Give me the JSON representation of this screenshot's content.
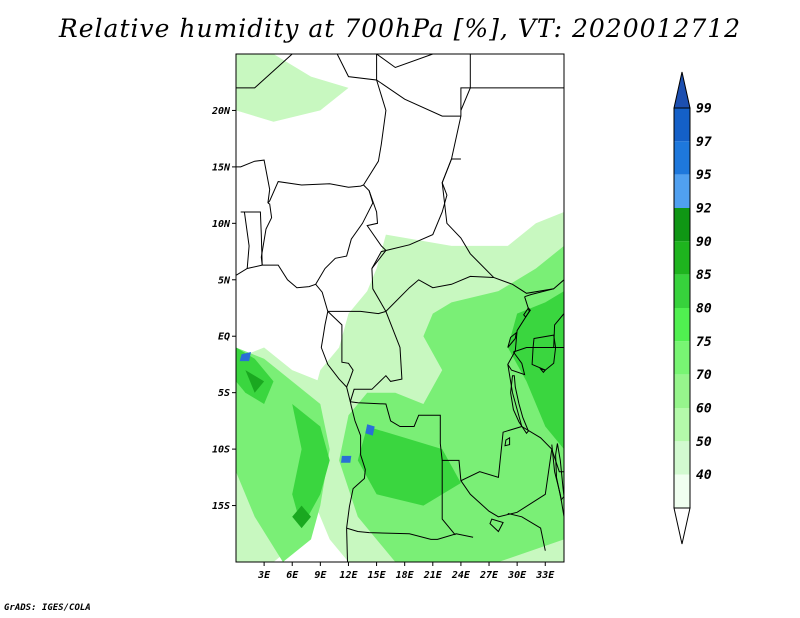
{
  "title": "Relative humidity at 700hPa [%], VT: 2020012712",
  "credit": "GrADS: IGES/COLA",
  "map": {
    "lon_range": [
      0,
      35
    ],
    "lat_range": [
      -20,
      25
    ],
    "lat_ticks": [
      {
        "value": 20,
        "label": "20N"
      },
      {
        "value": 15,
        "label": "15N"
      },
      {
        "value": 10,
        "label": "10N"
      },
      {
        "value": 5,
        "label": "5N"
      },
      {
        "value": 0,
        "label": "EQ"
      },
      {
        "value": -5,
        "label": "5S"
      },
      {
        "value": -10,
        "label": "10S"
      },
      {
        "value": -15,
        "label": "15S"
      }
    ],
    "lon_ticks": [
      {
        "value": 3,
        "label": "3E"
      },
      {
        "value": 6,
        "label": "6E"
      },
      {
        "value": 9,
        "label": "9E"
      },
      {
        "value": 12,
        "label": "12E"
      },
      {
        "value": 15,
        "label": "15E"
      },
      {
        "value": 18,
        "label": "18E"
      },
      {
        "value": 21,
        "label": "21E"
      },
      {
        "value": 24,
        "label": "24E"
      },
      {
        "value": 27,
        "label": "27E"
      },
      {
        "value": 30,
        "label": "30E"
      },
      {
        "value": 33,
        "label": "33E"
      }
    ]
  },
  "colorbar": {
    "levels": [
      "99",
      "97",
      "95",
      "92",
      "90",
      "85",
      "80",
      "75",
      "70",
      "60",
      "50",
      "40"
    ],
    "colors": [
      "#1460c8",
      "#1e78dc",
      "#50a0f0",
      "#0f9614",
      "#1eb41e",
      "#37d23c",
      "#50f050",
      "#78f573",
      "#96f58c",
      "#b4faaa",
      "#d2fad0",
      "#f0fff0"
    ],
    "top_color": "#1c4fb0",
    "bottom_color": "#ffffff"
  },
  "humidity_fields": [
    {
      "level": 60,
      "color": "#c8f8c0",
      "polygon": [
        [
          0,
          25
        ],
        [
          4,
          25
        ],
        [
          8,
          23
        ],
        [
          12,
          22
        ],
        [
          9,
          20
        ],
        [
          4,
          19
        ],
        [
          0,
          20
        ]
      ]
    },
    {
      "level": 60,
      "color": "#c8f8c0",
      "polygon": [
        [
          16,
          9
        ],
        [
          23,
          8
        ],
        [
          29,
          8
        ],
        [
          32,
          10
        ],
        [
          35,
          11
        ],
        [
          35,
          -20
        ],
        [
          12,
          -20
        ],
        [
          10,
          -18
        ],
        [
          8,
          -14
        ],
        [
          7,
          -10
        ],
        [
          8,
          -6
        ],
        [
          9,
          -3
        ],
        [
          11,
          -1
        ],
        [
          12,
          2
        ],
        [
          14,
          4
        ],
        [
          15,
          6
        ]
      ]
    },
    {
      "level": 60,
      "color": "#c8f8c0",
      "polygon": [
        [
          0,
          -2
        ],
        [
          3,
          -1
        ],
        [
          6,
          -3
        ],
        [
          9,
          -4
        ],
        [
          10,
          -8
        ],
        [
          9,
          -14
        ],
        [
          7,
          -18
        ],
        [
          4,
          -20
        ],
        [
          0,
          -20
        ]
      ]
    },
    {
      "level": 75,
      "color": "#7aef76",
      "polygon": [
        [
          23,
          3
        ],
        [
          28,
          4
        ],
        [
          32,
          6
        ],
        [
          35,
          8
        ],
        [
          35,
          -18
        ],
        [
          28,
          -20
        ],
        [
          17,
          -20
        ],
        [
          13,
          -16
        ],
        [
          11,
          -11
        ],
        [
          12,
          -7
        ],
        [
          14,
          -5
        ],
        [
          17,
          -5
        ],
        [
          20,
          -6
        ],
        [
          22,
          -3
        ],
        [
          20,
          0
        ],
        [
          21,
          2
        ]
      ]
    },
    {
      "level": 75,
      "color": "#7aef76",
      "polygon": [
        [
          0,
          -1
        ],
        [
          3,
          -2
        ],
        [
          6,
          -4
        ],
        [
          9,
          -6
        ],
        [
          10,
          -10
        ],
        [
          9,
          -15
        ],
        [
          8,
          -18
        ],
        [
          5,
          -20
        ],
        [
          2,
          -16
        ],
        [
          0,
          -12
        ]
      ]
    },
    {
      "level": 85,
      "color": "#3ad63f",
      "polygon": [
        [
          0,
          -1
        ],
        [
          2,
          -2
        ],
        [
          4,
          -4
        ],
        [
          3,
          -6
        ],
        [
          1,
          -5
        ],
        [
          0,
          -4
        ]
      ]
    },
    {
      "level": 85,
      "color": "#3ad63f",
      "polygon": [
        [
          6,
          -6
        ],
        [
          9,
          -8
        ],
        [
          10,
          -11
        ],
        [
          9,
          -14
        ],
        [
          7,
          -17
        ],
        [
          6,
          -14
        ],
        [
          7,
          -10
        ]
      ]
    },
    {
      "level": 85,
      "color": "#3ad63f",
      "polygon": [
        [
          30,
          2
        ],
        [
          33,
          3
        ],
        [
          35,
          4
        ],
        [
          35,
          -10
        ],
        [
          33,
          -8
        ],
        [
          31,
          -4
        ],
        [
          29,
          -1
        ]
      ]
    },
    {
      "level": 85,
      "color": "#3ad63f",
      "polygon": [
        [
          14,
          -8
        ],
        [
          18,
          -9
        ],
        [
          22,
          -10
        ],
        [
          24,
          -13
        ],
        [
          20,
          -15
        ],
        [
          15,
          -14
        ],
        [
          13,
          -11
        ]
      ]
    },
    {
      "level": 92,
      "color": "#1aa820",
      "polygon": [
        [
          1,
          -3
        ],
        [
          3,
          -4
        ],
        [
          2,
          -5
        ]
      ]
    },
    {
      "level": 92,
      "color": "#1aa820",
      "polygon": [
        [
          7,
          -15
        ],
        [
          8,
          -16
        ],
        [
          7,
          -17
        ],
        [
          6,
          -16
        ]
      ]
    },
    {
      "level": 99,
      "color": "#2a6fd6",
      "polygon": [
        [
          0.6,
          -1.6
        ],
        [
          1.6,
          -1.4
        ],
        [
          1.4,
          -2.2
        ],
        [
          0.4,
          -2.2
        ]
      ]
    },
    {
      "level": 99,
      "color": "#2a6fd6",
      "polygon": [
        [
          14,
          -7.8
        ],
        [
          14.8,
          -8.0
        ],
        [
          14.6,
          -8.8
        ],
        [
          13.8,
          -8.6
        ]
      ]
    },
    {
      "level": 99,
      "color": "#2a6fd6",
      "polygon": [
        [
          11.3,
          -10.6
        ],
        [
          12.3,
          -10.6
        ],
        [
          12.2,
          -11.2
        ],
        [
          11.2,
          -11.2
        ]
      ]
    }
  ],
  "country_borders": [
    [
      [
        0,
        22
      ],
      [
        2,
        22
      ],
      [
        6,
        25
      ]
    ],
    [
      [
        10.8,
        25
      ],
      [
        12,
        23
      ],
      [
        15,
        22.7
      ],
      [
        15,
        25
      ]
    ],
    [
      [
        15,
        25
      ],
      [
        17,
        23.8
      ],
      [
        21,
        25
      ]
    ],
    [
      [
        15,
        22.7
      ],
      [
        16,
        20
      ],
      [
        15.5,
        17
      ],
      [
        15.2,
        15.5
      ],
      [
        13.6,
        13.4
      ],
      [
        13.3,
        13.3
      ],
      [
        12,
        13.2
      ],
      [
        10,
        13.5
      ],
      [
        7,
        13.4
      ],
      [
        4.5,
        13.7
      ],
      [
        3.6,
        12
      ],
      [
        3.4,
        11.8
      ]
    ],
    [
      [
        0,
        15
      ],
      [
        0.5,
        15
      ],
      [
        2,
        15.5
      ],
      [
        3,
        15.6
      ],
      [
        3.6,
        13
      ],
      [
        3.4,
        11.8
      ]
    ],
    [
      [
        0.5,
        11
      ],
      [
        2.6,
        11
      ],
      [
        2.7,
        9
      ],
      [
        2.8,
        6.3
      ]
    ],
    [
      [
        1.2,
        6
      ],
      [
        1.4,
        8
      ],
      [
        0.9,
        11
      ]
    ],
    [
      [
        3.4,
        11.8
      ],
      [
        3.6,
        11.7
      ],
      [
        3.8,
        10.5
      ],
      [
        3.2,
        9.5
      ],
      [
        2.7,
        7
      ],
      [
        2.8,
        6.3
      ]
    ],
    [
      [
        8.5,
        4.6
      ],
      [
        9.5,
        6
      ],
      [
        10.6,
        6.9
      ],
      [
        11.8,
        7.1
      ],
      [
        12.3,
        8.6
      ],
      [
        13.5,
        10
      ],
      [
        14.6,
        11.8
      ],
      [
        14.2,
        12.9
      ],
      [
        13.6,
        13.4
      ]
    ],
    [
      [
        14.2,
        12.9
      ],
      [
        15,
        11
      ],
      [
        15.1,
        10
      ],
      [
        14,
        9.8
      ],
      [
        15.5,
        8
      ],
      [
        16,
        7.6
      ],
      [
        14.5,
        6
      ],
      [
        14.6,
        4.2
      ],
      [
        16,
        2.2
      ],
      [
        15.2,
        2
      ],
      [
        13.3,
        2.2
      ],
      [
        11.3,
        2.2
      ],
      [
        9.8,
        2.2
      ]
    ],
    [
      [
        9.8,
        2.2
      ],
      [
        11.3,
        1
      ],
      [
        11.3,
        -2.3
      ],
      [
        12,
        -2.4
      ],
      [
        12.5,
        -3
      ],
      [
        12.1,
        -3.9
      ],
      [
        11.8,
        -4.5
      ]
    ],
    [
      [
        14.5,
        6
      ],
      [
        15.5,
        7.5
      ],
      [
        18.5,
        8.1
      ],
      [
        21,
        9
      ],
      [
        22,
        11
      ],
      [
        22.5,
        12.5
      ],
      [
        22,
        13.6
      ],
      [
        23,
        15.7
      ],
      [
        24,
        19.5
      ],
      [
        24,
        20
      ]
    ],
    [
      [
        24,
        20
      ],
      [
        24,
        22
      ],
      [
        25,
        22
      ],
      [
        25,
        25
      ]
    ],
    [
      [
        15,
        22.7
      ],
      [
        18,
        21
      ],
      [
        22,
        19.5
      ],
      [
        24,
        19.5
      ]
    ],
    [
      [
        24,
        20
      ],
      [
        25,
        22
      ],
      [
        36.8,
        22
      ]
    ],
    [
      [
        22,
        13.6
      ],
      [
        22.5,
        10
      ],
      [
        24,
        8.7
      ],
      [
        25,
        7.3
      ],
      [
        27.5,
        5.2
      ],
      [
        29.5,
        4.6
      ],
      [
        31,
        3.8
      ],
      [
        33.9,
        4.2
      ],
      [
        35,
        5
      ]
    ],
    [
      [
        16,
        2.2
      ],
      [
        18.5,
        4.3
      ],
      [
        19.5,
        5
      ],
      [
        21,
        4.3
      ],
      [
        23,
        4.6
      ],
      [
        25,
        5.3
      ],
      [
        27.5,
        5.2
      ]
    ],
    [
      [
        16,
        2.2
      ],
      [
        17.5,
        -1
      ],
      [
        17.7,
        -3.8
      ],
      [
        16.5,
        -4
      ],
      [
        16,
        -3.5
      ],
      [
        14.5,
        -4.7
      ],
      [
        13.5,
        -4.7
      ],
      [
        12.6,
        -4.7
      ],
      [
        12.2,
        -5.8
      ]
    ],
    [
      [
        12.2,
        -5.8
      ],
      [
        13,
        -5.9
      ],
      [
        16,
        -6
      ],
      [
        16.5,
        -7.5
      ],
      [
        17.5,
        -8
      ],
      [
        19,
        -8
      ],
      [
        19.5,
        -7
      ],
      [
        21.8,
        -7
      ],
      [
        21.8,
        -9.5
      ],
      [
        22,
        -11
      ],
      [
        23.8,
        -11
      ],
      [
        24,
        -12.8
      ],
      [
        26,
        -12
      ],
      [
        28,
        -12.5
      ],
      [
        28.5,
        -8.5
      ],
      [
        30.5,
        -8
      ],
      [
        29.5,
        -5
      ],
      [
        29,
        -2.5
      ],
      [
        29.8,
        -1.3
      ],
      [
        30,
        0.5
      ],
      [
        31.3,
        2.2
      ],
      [
        30.8,
        3.5
      ]
    ],
    [
      [
        11.8,
        -17
      ],
      [
        13,
        -17.3
      ],
      [
        14.2,
        -17.4
      ],
      [
        18.5,
        -17.5
      ],
      [
        20.8,
        -18
      ],
      [
        21.5,
        -18
      ],
      [
        23.5,
        -17.5
      ],
      [
        25.3,
        -17.8
      ]
    ],
    [
      [
        22,
        -11
      ],
      [
        22,
        -13
      ],
      [
        22,
        -16.2
      ],
      [
        23.4,
        -17.6
      ]
    ],
    [
      [
        24,
        -12.8
      ],
      [
        25,
        -14
      ],
      [
        27,
        -15.5
      ],
      [
        28,
        -16
      ],
      [
        30,
        -15.6
      ],
      [
        33,
        -14
      ],
      [
        33.7,
        -10
      ]
    ],
    [
      [
        30.5,
        -8
      ],
      [
        32.5,
        -9
      ],
      [
        33.7,
        -10
      ],
      [
        34.5,
        -12
      ],
      [
        35,
        -12
      ]
    ],
    [
      [
        33.7,
        -9.6
      ],
      [
        34,
        -12
      ],
      [
        34.6,
        -14
      ],
      [
        35,
        -16
      ]
    ],
    [
      [
        29,
        -15.7
      ],
      [
        30.5,
        -16
      ],
      [
        32.5,
        -17
      ],
      [
        33,
        -19
      ]
    ],
    [
      [
        29.8,
        -1.3
      ],
      [
        29.6,
        -1.4
      ],
      [
        31,
        -1
      ],
      [
        33.9,
        -1
      ],
      [
        35,
        -1
      ]
    ],
    [
      [
        29.6,
        -1.4
      ],
      [
        30.5,
        -2.4
      ],
      [
        30.8,
        -3.4
      ],
      [
        29.4,
        -3
      ],
      [
        29,
        -2.5
      ]
    ],
    [
      [
        33.9,
        -1
      ],
      [
        34,
        1
      ],
      [
        35,
        2
      ]
    ],
    [
      [
        30.8,
        3.5
      ],
      [
        31.5,
        3.7
      ],
      [
        33.9,
        4.2
      ]
    ],
    [
      [
        22,
        13.6
      ],
      [
        23,
        15.7
      ],
      [
        24,
        15.7
      ]
    ]
  ],
  "coastlines": [
    [
      [
        0,
        5.4
      ],
      [
        1.2,
        6
      ],
      [
        2.8,
        6.3
      ],
      [
        4.5,
        6.3
      ],
      [
        5.5,
        5
      ],
      [
        6.5,
        4.3
      ],
      [
        7.8,
        4.4
      ],
      [
        8.5,
        4.6
      ],
      [
        9.2,
        3.9
      ],
      [
        9.8,
        2.2
      ],
      [
        9.5,
        1
      ],
      [
        9.3,
        0
      ],
      [
        9.1,
        -1
      ],
      [
        9.8,
        -2.5
      ],
      [
        11,
        -3.8
      ],
      [
        11.8,
        -4.5
      ],
      [
        12.2,
        -5.8
      ],
      [
        12.3,
        -6.2
      ],
      [
        12.7,
        -7.5
      ],
      [
        13.3,
        -8.8
      ],
      [
        13.3,
        -10.5
      ],
      [
        13.8,
        -11.8
      ],
      [
        13.7,
        -12.6
      ],
      [
        12.5,
        -13.5
      ],
      [
        12.1,
        -15.1
      ],
      [
        11.8,
        -17
      ]
    ],
    [
      [
        11.8,
        -17
      ],
      [
        11.9,
        -20
      ]
    ]
  ],
  "lakes": [
    [
      [
        29.5,
        -3.5
      ],
      [
        29.3,
        -5
      ],
      [
        29.6,
        -6.5
      ],
      [
        30.2,
        -7.6
      ],
      [
        31,
        -8.6
      ],
      [
        31.2,
        -8.4
      ],
      [
        30.6,
        -7.2
      ],
      [
        30.2,
        -6
      ],
      [
        29.8,
        -4.5
      ],
      [
        29.7,
        -3.5
      ]
    ],
    [
      [
        31.8,
        -0.2
      ],
      [
        33.9,
        0.1
      ],
      [
        34.1,
        -1
      ],
      [
        33.9,
        -2.4
      ],
      [
        33,
        -3
      ],
      [
        31.6,
        -2.5
      ],
      [
        31.7,
        -1
      ]
    ],
    [
      [
        34.3,
        -9.5
      ],
      [
        34.6,
        -11
      ],
      [
        34.9,
        -13.5
      ],
      [
        35,
        -14.2
      ],
      [
        34.7,
        -14.5
      ],
      [
        34.2,
        -12.5
      ],
      [
        34.1,
        -10.5
      ]
    ],
    [
      [
        28.8,
        -9.2
      ],
      [
        29.2,
        -9
      ],
      [
        29.2,
        -9.6
      ],
      [
        28.7,
        -9.7
      ]
    ],
    [
      [
        27.3,
        -16.2
      ],
      [
        28.5,
        -16.5
      ],
      [
        28,
        -17.3
      ],
      [
        27.1,
        -16.6
      ]
    ],
    [
      [
        29,
        -1
      ],
      [
        29.8,
        -0.2
      ],
      [
        29.9,
        0.3
      ],
      [
        29.3,
        -0.1
      ]
    ],
    [
      [
        30.9,
        1.7
      ],
      [
        31.4,
        2.3
      ],
      [
        31.2,
        2.5
      ],
      [
        30.7,
        1.9
      ]
    ],
    [
      [
        33,
        -3
      ],
      [
        32.8,
        -3.2
      ],
      [
        32.5,
        -2.9
      ]
    ]
  ]
}
